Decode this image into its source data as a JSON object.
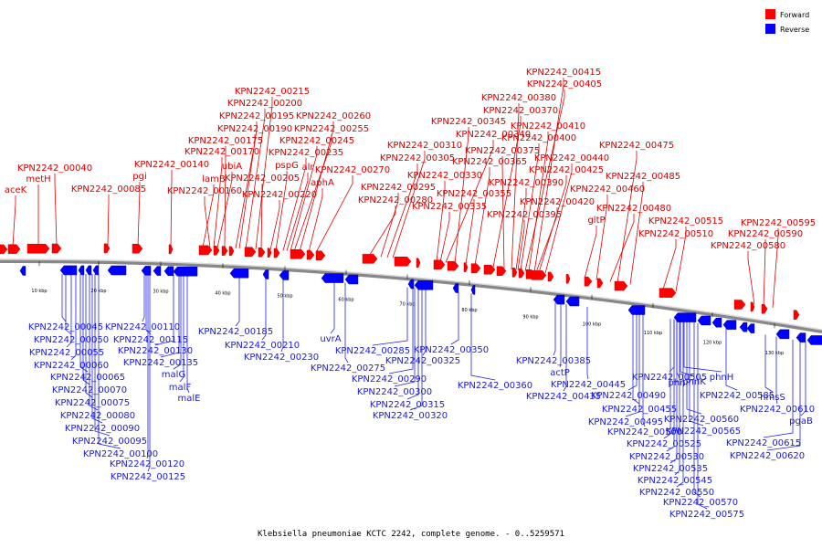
{
  "legend": {
    "forward": {
      "label": "Forward",
      "color": "#ff0000"
    },
    "reverse": {
      "label": "Reverse",
      "color": "#0000ff"
    }
  },
  "caption": "Klebsiella pneumoniae KCTC 2242, complete genome. - 0..5259571",
  "ticks": [
    "10 kbp",
    "20 kbp",
    "30 kbp",
    "40 kbp",
    "50 kbp",
    "60 kbp",
    "70 kbp",
    "80 kbp",
    "90 kbp",
    "100 kbp",
    "110 kbp",
    "120 kbp",
    "130 kbp"
  ],
  "forward_genes": [
    "aceK",
    "metH",
    "KPN2242_00040",
    "KPN2242_00085",
    "pgi",
    "KPN2242_00140",
    "lamB",
    "KPN2242_00160",
    "KPN2242_00170",
    "ubiA",
    "KPN2242_00175",
    "KPN2242_00190",
    "KPN2242_00195",
    "KPN2242_00200",
    "KPN2242_00215",
    "KPN2242_00205",
    "KPN2242_00220",
    "pspG",
    "alr",
    "KPN2242_00235",
    "KPN2242_00245",
    "KPN2242_00255",
    "KPN2242_00260",
    "aphA",
    "KPN2242_00270",
    "KPN2242_00280",
    "KPN2242_00295",
    "KPN2242_00305",
    "KPN2242_00310",
    "KPN2242_00330",
    "KPN2242_00335",
    "KPN2242_00340",
    "KPN2242_00345",
    "KPN2242_00355",
    "KPN2242_00365",
    "KPN2242_00370",
    "KPN2242_00375",
    "KPN2242_00380",
    "KPN2242_00390",
    "KPN2242_00395",
    "KPN2242_00400",
    "KPN2242_00405",
    "KPN2242_00410",
    "KPN2242_00415",
    "KPN2242_00420",
    "KPN2242_00425",
    "KPN2242_00440",
    "gltP",
    "KPN2242_00460",
    "KPN2242_00475",
    "KPN2242_00480",
    "KPN2242_00485",
    "KPN2242_00510",
    "KPN2242_00515",
    "KPN2242_00580",
    "KPN2242_00590",
    "KPN2242_00595"
  ],
  "reverse_genes": [
    "KPN2242_00045",
    "KPN2242_00050",
    "KPN2242_00055",
    "KPN2242_00060",
    "KPN2242_00065",
    "KPN2242_00070",
    "KPN2242_00075",
    "KPN2242_00080",
    "KPN2242_00090",
    "KPN2242_00095",
    "KPN2242_00100",
    "KPN2242_00110",
    "KPN2242_00115",
    "KPN2242_00120",
    "KPN2242_00125",
    "KPN2242_00130",
    "KPN2242_00135",
    "malG",
    "malF",
    "malE",
    "KPN2242_00185",
    "KPN2242_00210",
    "KPN2242_00230",
    "uvrA",
    "KPN2242_00275",
    "KPN2242_00285",
    "KPN2242_00290",
    "KPN2242_00300",
    "KPN2242_00315",
    "KPN2242_00320",
    "KPN2242_00325",
    "KPN2242_00350",
    "KPN2242_00360",
    "KPN2242_00385",
    "actP",
    "KPN2242_00435",
    "KPN2242_00445",
    "KPN2242_00455",
    "KPN2242_00490",
    "KPN2242_00495",
    "KPN2242_00500",
    "KPN2242_00505",
    "phnP",
    "phnK",
    "phnH",
    "KPN2242_00525",
    "KPN2242_00530",
    "KPN2242_00535",
    "KPN2242_00545",
    "KPN2242_00550",
    "KPN2242_00560",
    "KPN2242_00565",
    "KPN2242_00570",
    "KPN2242_00575",
    "KPN2242_00585",
    "hmsS",
    "KPN2242_00610",
    "pgaB",
    "KPN2242_00615",
    "KPN2242_00620"
  ]
}
